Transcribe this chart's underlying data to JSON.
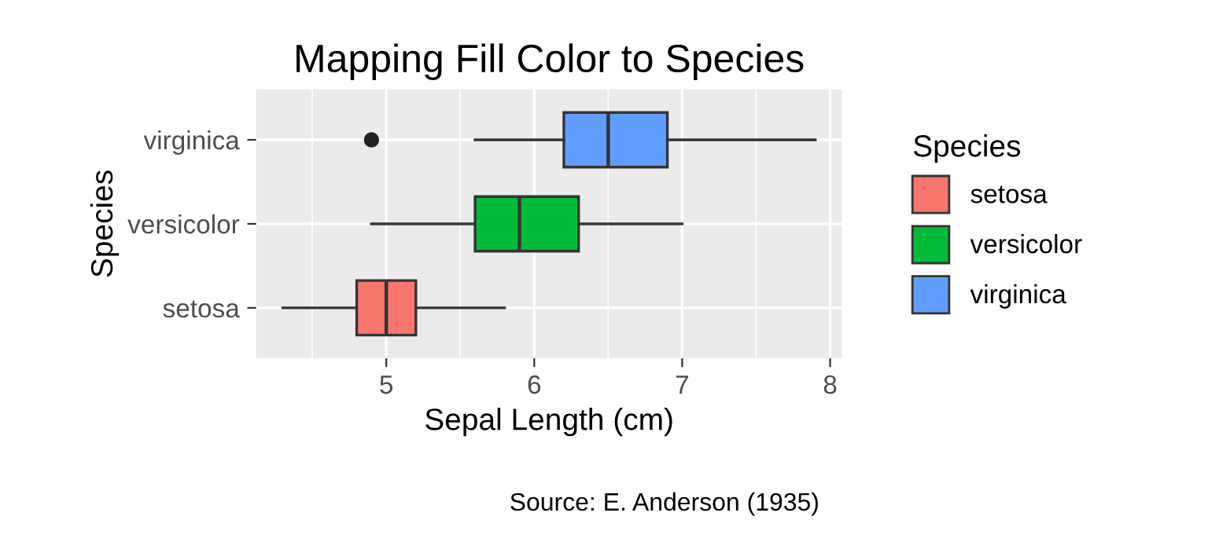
{
  "chart_data": {
    "type": "box",
    "title": "Mapping Fill Color to Species",
    "xlabel": "Sepal Length (cm)",
    "ylabel": "Species",
    "legend_title": "Species",
    "annotations": [
      "Source: E. Anderson (1935)"
    ],
    "orientation": "horizontal",
    "categories": [
      "virginica",
      "versicolor",
      "setosa"
    ],
    "series": [
      {
        "name": "setosa",
        "color": "#f8766d",
        "boxes": [
          null,
          null,
          {
            "low": 4.3,
            "q1": 4.8,
            "median": 5.0,
            "q3": 5.2,
            "high": 5.8
          }
        ]
      },
      {
        "name": "versicolor",
        "color": "#00ba38",
        "boxes": [
          null,
          {
            "low": 4.9,
            "q1": 5.6,
            "median": 5.9,
            "q3": 6.3,
            "high": 7.0
          },
          null
        ]
      },
      {
        "name": "virginica",
        "color": "#619cff",
        "boxes": [
          {
            "low": 5.6,
            "q1": 6.2,
            "median": 6.5,
            "q3": 6.9,
            "high": 7.9,
            "outliers": [
              4.9
            ]
          },
          null,
          null
        ]
      }
    ],
    "xlim": [
      4.12,
      8.08
    ],
    "xticks": [
      5,
      6,
      7,
      8
    ],
    "grid": true,
    "legend": "right"
  }
}
